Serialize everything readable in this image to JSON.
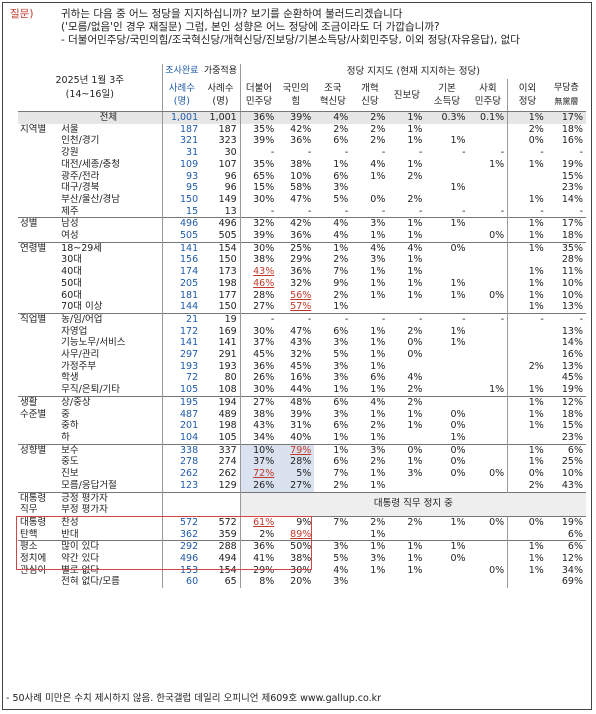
{
  "question": {
    "label": "질문)",
    "lines": [
      "귀하는 다음 중 어느 정당을 지지하십니까? 보기를 순환하여 불러드리겠습니다",
      "('모름/없음'인 경우 재질문) 그럼, 본인 성향은 어느 정당에 조금이라도 더 가깝습니까?",
      "- 더불어민주당/국민의힘/조국혁신당/개혁신당/진보당/기본소득당/사회민주당, 이외 정당(자유응답), 없다"
    ]
  },
  "header": {
    "period": "2025년 1월 3주",
    "dates": "(14~16일)",
    "col_survey_top": "조사완료",
    "col_survey": "사례수",
    "col_survey_unit": "(명)",
    "col_weight_top": "가중적용",
    "col_weight": "사례수",
    "col_weight_unit": "(명)",
    "party_group": "정당 지지도 (현재 지지하는 정당)",
    "parties": [
      {
        "l1": "더불어",
        "l2": "민주당"
      },
      {
        "l1": "국민의",
        "l2": "힘"
      },
      {
        "l1": "조국",
        "l2": "혁신당"
      },
      {
        "l1": "개혁",
        "l2": "신당"
      },
      {
        "l1": "진보당",
        "l2": ""
      },
      {
        "l1": "기본",
        "l2": "소득당"
      },
      {
        "l1": "사회",
        "l2": "민주당"
      },
      {
        "l1": "이외",
        "l2": "정당"
      },
      {
        "l1": "무당층",
        "l2": "無黨層"
      }
    ]
  },
  "rows": [
    {
      "g": "",
      "s": "전체",
      "n": "1,001",
      "w": "1,001",
      "v": [
        "36%",
        "39%",
        "4%",
        "2%",
        "1%",
        "0.3%",
        "0.1%",
        "1%",
        "17%"
      ],
      "total": true
    },
    {
      "g": "지역별",
      "s": "서울",
      "n": "187",
      "w": "187",
      "v": [
        "35%",
        "42%",
        "2%",
        "2%",
        "1%",
        "",
        "",
        "2%",
        "18%"
      ]
    },
    {
      "g": "",
      "s": "인천/경기",
      "n": "321",
      "w": "323",
      "v": [
        "39%",
        "36%",
        "6%",
        "2%",
        "1%",
        "1%",
        "",
        "0%",
        "16%"
      ]
    },
    {
      "g": "",
      "s": "강원",
      "n": "31",
      "w": "30",
      "v": [
        "-",
        "-",
        "-",
        "-",
        "-",
        "-",
        "-",
        "-",
        "-"
      ]
    },
    {
      "g": "",
      "s": "대전/세종/충청",
      "n": "109",
      "w": "107",
      "v": [
        "35%",
        "38%",
        "1%",
        "4%",
        "1%",
        "",
        "1%",
        "1%",
        "19%"
      ]
    },
    {
      "g": "",
      "s": "광주/전라",
      "n": "93",
      "w": "96",
      "v": [
        "65%",
        "10%",
        "6%",
        "1%",
        "2%",
        "",
        "",
        "",
        "15%"
      ]
    },
    {
      "g": "",
      "s": "대구/경북",
      "n": "95",
      "w": "96",
      "v": [
        "15%",
        "58%",
        "3%",
        "",
        "",
        "1%",
        "",
        "",
        "23%"
      ]
    },
    {
      "g": "",
      "s": "부산/울산/경남",
      "n": "150",
      "w": "149",
      "v": [
        "30%",
        "47%",
        "5%",
        "0%",
        "2%",
        "",
        "",
        "1%",
        "14%"
      ]
    },
    {
      "g": "",
      "s": "제주",
      "n": "15",
      "w": "13",
      "v": [
        "-",
        "-",
        "-",
        "-",
        "-",
        "-",
        "-",
        "-",
        "-"
      ]
    },
    {
      "g": "성별",
      "s": "남성",
      "n": "496",
      "w": "496",
      "v": [
        "32%",
        "42%",
        "4%",
        "3%",
        "1%",
        "1%",
        "",
        "1%",
        "17%"
      ],
      "sep": true
    },
    {
      "g": "",
      "s": "여성",
      "n": "505",
      "w": "505",
      "v": [
        "39%",
        "36%",
        "4%",
        "1%",
        "1%",
        "",
        "0%",
        "1%",
        "18%"
      ]
    },
    {
      "g": "연령별",
      "s": "18~29세",
      "n": "141",
      "w": "154",
      "v": [
        "30%",
        "25%",
        "1%",
        "4%",
        "4%",
        "0%",
        "",
        "1%",
        "35%"
      ],
      "sep": true
    },
    {
      "g": "",
      "s": "30대",
      "n": "156",
      "w": "150",
      "v": [
        "38%",
        "29%",
        "2%",
        "3%",
        "1%",
        "",
        "",
        "",
        "28%"
      ]
    },
    {
      "g": "",
      "s": "40대",
      "n": "174",
      "w": "173",
      "v": [
        "43%",
        "36%",
        "7%",
        "1%",
        "1%",
        "",
        "",
        "1%",
        "11%"
      ],
      "u": [
        0
      ]
    },
    {
      "g": "",
      "s": "50대",
      "n": "205",
      "w": "198",
      "v": [
        "46%",
        "32%",
        "9%",
        "1%",
        "1%",
        "1%",
        "",
        "1%",
        "10%"
      ],
      "u": [
        0
      ]
    },
    {
      "g": "",
      "s": "60대",
      "n": "181",
      "w": "177",
      "v": [
        "28%",
        "56%",
        "2%",
        "1%",
        "1%",
        "1%",
        "0%",
        "1%",
        "10%"
      ],
      "u": [
        1
      ]
    },
    {
      "g": "",
      "s": "70대 이상",
      "n": "144",
      "w": "150",
      "v": [
        "27%",
        "57%",
        "1%",
        "",
        "",
        "",
        "",
        "1%",
        "13%"
      ],
      "u": [
        1
      ]
    },
    {
      "g": "직업별",
      "s": "농/임/어업",
      "n": "21",
      "w": "19",
      "v": [
        "-",
        "-",
        "-",
        "-",
        "-",
        "-",
        "-",
        "-",
        "-"
      ],
      "sep": true
    },
    {
      "g": "",
      "s": "자영업",
      "n": "172",
      "w": "169",
      "v": [
        "30%",
        "47%",
        "6%",
        "1%",
        "2%",
        "1%",
        "",
        "",
        "13%"
      ]
    },
    {
      "g": "",
      "s": "기능노무/서비스",
      "n": "141",
      "w": "141",
      "v": [
        "37%",
        "43%",
        "3%",
        "1%",
        "0%",
        "1%",
        "",
        "",
        "14%"
      ]
    },
    {
      "g": "",
      "s": "사무/관리",
      "n": "297",
      "w": "291",
      "v": [
        "45%",
        "32%",
        "5%",
        "1%",
        "0%",
        "",
        "",
        "",
        "16%"
      ]
    },
    {
      "g": "",
      "s": "가정주부",
      "n": "193",
      "w": "193",
      "v": [
        "36%",
        "45%",
        "3%",
        "1%",
        "",
        "",
        "",
        "2%",
        "13%"
      ]
    },
    {
      "g": "",
      "s": "학생",
      "n": "72",
      "w": "80",
      "v": [
        "26%",
        "16%",
        "3%",
        "6%",
        "4%",
        "",
        "",
        "",
        "45%"
      ]
    },
    {
      "g": "",
      "s": "무직/은퇴/기타",
      "n": "105",
      "w": "108",
      "v": [
        "30%",
        "44%",
        "1%",
        "1%",
        "2%",
        "",
        "1%",
        "1%",
        "19%"
      ]
    },
    {
      "g": "생활",
      "s": "상/중상",
      "n": "195",
      "w": "194",
      "v": [
        "27%",
        "48%",
        "6%",
        "4%",
        "2%",
        "",
        "",
        "1%",
        "12%"
      ],
      "sep": true
    },
    {
      "g": "수준별",
      "s": "중",
      "n": "487",
      "w": "489",
      "v": [
        "38%",
        "39%",
        "3%",
        "1%",
        "1%",
        "0%",
        "",
        "1%",
        "18%"
      ]
    },
    {
      "g": "",
      "s": "중하",
      "n": "201",
      "w": "198",
      "v": [
        "43%",
        "31%",
        "6%",
        "2%",
        "1%",
        "0%",
        "",
        "1%",
        "15%"
      ]
    },
    {
      "g": "",
      "s": "하",
      "n": "104",
      "w": "105",
      "v": [
        "34%",
        "40%",
        "1%",
        "1%",
        "",
        "1%",
        "",
        "",
        "23%"
      ]
    },
    {
      "g": "성향별",
      "s": "보수",
      "n": "338",
      "w": "337",
      "v": [
        "10%",
        "79%",
        "1%",
        "3%",
        "0%",
        "0%",
        "",
        "1%",
        "6%"
      ],
      "u": [
        1
      ],
      "sep": true,
      "hl": true
    },
    {
      "g": "",
      "s": "중도",
      "n": "278",
      "w": "274",
      "v": [
        "37%",
        "28%",
        "6%",
        "2%",
        "1%",
        "0%",
        "",
        "1%",
        "25%"
      ],
      "hl": true
    },
    {
      "g": "",
      "s": "진보",
      "n": "262",
      "w": "262",
      "v": [
        "72%",
        "5%",
        "7%",
        "1%",
        "3%",
        "0%",
        "0%",
        "0%",
        "10%"
      ],
      "u": [
        0
      ],
      "hl": true
    },
    {
      "g": "",
      "s": "모름/응답거절",
      "n": "123",
      "w": "129",
      "v": [
        "26%",
        "27%",
        "2%",
        "1%",
        "",
        "",
        "",
        "2%",
        "43%"
      ],
      "hl": true
    },
    {
      "g": "대통령",
      "s": "긍정 평가자",
      "n": "",
      "w": "",
      "v": [],
      "note": true,
      "sep": true
    },
    {
      "g": "직무",
      "s": "부정 평가자",
      "n": "",
      "w": "",
      "v": [],
      "note2": true
    },
    {
      "g": "대통령",
      "s": "찬성",
      "n": "572",
      "w": "572",
      "v": [
        "61%",
        "9%",
        "7%",
        "2%",
        "2%",
        "1%",
        "0%",
        "0%",
        "19%"
      ],
      "u": [
        0
      ],
      "sep": true
    },
    {
      "g": "탄핵",
      "s": "반대",
      "n": "362",
      "w": "359",
      "v": [
        "2%",
        "89%",
        "",
        "1%",
        "",
        "",
        "",
        "",
        "6%"
      ],
      "u": [
        1
      ]
    },
    {
      "g": "정치에",
      "s": "많이 있다",
      "n": "292",
      "w": "288",
      "v": [
        "36%",
        "50%",
        "3%",
        "1%",
        "1%",
        "1%",
        "",
        "1%",
        "6%"
      ],
      "sep": true,
      "g0": "평소"
    },
    {
      "g": "관심이",
      "s": "약간 있다",
      "n": "496",
      "w": "494",
      "v": [
        "41%",
        "38%",
        "5%",
        "3%",
        "1%",
        "0%",
        "",
        "1%",
        "12%"
      ]
    },
    {
      "g": "",
      "s": "별로 없다",
      "n": "153",
      "w": "154",
      "v": [
        "29%",
        "30%",
        "4%",
        "1%",
        "1%",
        "",
        "0%",
        "1%",
        "34%"
      ]
    },
    {
      "g": "",
      "s": "전혀 없다/모름",
      "n": "60",
      "w": "65",
      "v": [
        "8%",
        "20%",
        "3%",
        "",
        "",
        "",
        "",
        "",
        "69%"
      ]
    }
  ],
  "president_note": "대통령 직무 정지 중",
  "footer": "- 50사례 미만은 수치 제시하지 않음. 한국갤럽 데일리 오피니언 제609호 www.gallup.co.kr"
}
